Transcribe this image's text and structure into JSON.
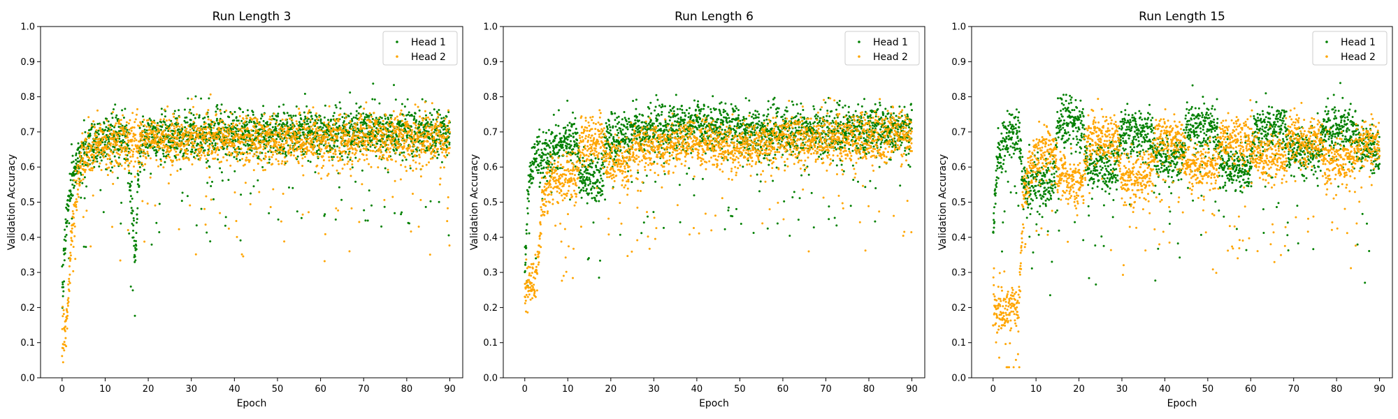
{
  "chart_data": [
    {
      "type": "scatter",
      "title": "Run Length 3",
      "xlabel": "Epoch",
      "ylabel": "Validation Accuracy",
      "xlim": [
        -5,
        93
      ],
      "ylim": [
        0,
        1.0
      ],
      "xticks": [
        "0",
        "10",
        "20",
        "30",
        "40",
        "50",
        "60",
        "70",
        "80",
        "90"
      ],
      "yticks": [
        "0.0",
        "0.1",
        "0.2",
        "0.3",
        "0.4",
        "0.5",
        "0.6",
        "0.7",
        "0.8",
        "0.9",
        "1.0"
      ],
      "grid": false,
      "legend": "top-right",
      "series": [
        {
          "name": "Head 1",
          "color": "#008000",
          "profile": {
            "x": [
              0,
              1,
              2,
              3,
              4,
              5,
              6,
              8,
              10,
              15,
              17,
              18,
              20,
              25,
              30,
              40,
              50,
              60,
              70,
              80,
              90
            ],
            "y": [
              0.22,
              0.45,
              0.55,
              0.6,
              0.63,
              0.65,
              0.66,
              0.67,
              0.68,
              0.68,
              0.35,
              0.65,
              0.68,
              0.69,
              0.69,
              0.69,
              0.7,
              0.7,
              0.7,
              0.7,
              0.7
            ]
          }
        },
        {
          "name": "Head 2",
          "color": "#FFA500",
          "profile": {
            "x": [
              0,
              1,
              2,
              3,
              4,
              5,
              6,
              8,
              10,
              15,
              20,
              25,
              30,
              40,
              50,
              60,
              70,
              80,
              90
            ],
            "y": [
              0.1,
              0.15,
              0.35,
              0.5,
              0.58,
              0.62,
              0.64,
              0.66,
              0.67,
              0.67,
              0.68,
              0.68,
              0.68,
              0.68,
              0.68,
              0.68,
              0.68,
              0.68,
              0.68
            ]
          }
        }
      ]
    },
    {
      "type": "scatter",
      "title": "Run Length 6",
      "xlabel": "Epoch",
      "ylabel": "Validation Accuracy",
      "xlim": [
        -5,
        93
      ],
      "ylim": [
        0,
        1.0
      ],
      "xticks": [
        "0",
        "10",
        "20",
        "30",
        "40",
        "50",
        "60",
        "70",
        "80",
        "90"
      ],
      "yticks": [
        "0.0",
        "0.1",
        "0.2",
        "0.3",
        "0.4",
        "0.5",
        "0.6",
        "0.7",
        "0.8",
        "0.9",
        "1.0"
      ],
      "grid": false,
      "legend": "top-right",
      "series": [
        {
          "name": "Head 1",
          "color": "#008000",
          "profile": {
            "x": [
              0,
              1,
              2,
              3,
              6,
              7,
              12,
              13,
              18,
              19,
              24,
              25,
              30,
              40,
              50,
              60,
              70,
              80,
              90
            ],
            "y": [
              0.3,
              0.55,
              0.6,
              0.63,
              0.63,
              0.67,
              0.67,
              0.57,
              0.57,
              0.68,
              0.68,
              0.7,
              0.7,
              0.72,
              0.71,
              0.7,
              0.7,
              0.71,
              0.7
            ]
          }
        },
        {
          "name": "Head 2",
          "color": "#FFA500",
          "profile": {
            "x": [
              0,
              3,
              4,
              6,
              7,
              12,
              13,
              18,
              19,
              24,
              25,
              30,
              40,
              50,
              60,
              70,
              80,
              90
            ],
            "y": [
              0.25,
              0.3,
              0.5,
              0.56,
              0.56,
              0.57,
              0.68,
              0.67,
              0.62,
              0.6,
              0.65,
              0.66,
              0.67,
              0.66,
              0.68,
              0.68,
              0.68,
              0.69
            ]
          }
        }
      ]
    },
    {
      "type": "scatter",
      "title": "Run Length 15",
      "xlabel": "Epoch",
      "ylabel": "Validation Accuracy",
      "xlim": [
        -5,
        93
      ],
      "ylim": [
        0,
        1.0
      ],
      "xticks": [
        "0",
        "10",
        "20",
        "30",
        "40",
        "50",
        "60",
        "70",
        "80",
        "90"
      ],
      "yticks": [
        "0.0",
        "0.1",
        "0.2",
        "0.3",
        "0.4",
        "0.5",
        "0.6",
        "0.7",
        "0.8",
        "0.9",
        "1.0"
      ],
      "grid": false,
      "legend": "top-right",
      "series": [
        {
          "name": "Head 1",
          "color": "#008000",
          "profile": {
            "x": [
              0,
              1,
              3,
              6,
              7,
              14,
              15,
              21,
              22,
              29,
              30,
              37,
              38,
              44,
              45,
              52,
              53,
              60,
              61,
              68,
              69,
              76,
              77,
              84,
              85,
              90
            ],
            "y": [
              0.4,
              0.62,
              0.68,
              0.7,
              0.55,
              0.55,
              0.73,
              0.72,
              0.6,
              0.6,
              0.71,
              0.7,
              0.62,
              0.62,
              0.72,
              0.71,
              0.6,
              0.6,
              0.72,
              0.71,
              0.64,
              0.64,
              0.71,
              0.7,
              0.65,
              0.65
            ]
          }
        },
        {
          "name": "Head 2",
          "color": "#FFA500",
          "profile": {
            "x": [
              0,
              6,
              7,
              9,
              14,
              15,
              21,
              22,
              29,
              30,
              37,
              38,
              44,
              45,
              52,
              53,
              60,
              61,
              68,
              69,
              76,
              77,
              84,
              85,
              90
            ],
            "y": [
              0.2,
              0.2,
              0.5,
              0.62,
              0.66,
              0.58,
              0.55,
              0.68,
              0.68,
              0.57,
              0.57,
              0.68,
              0.67,
              0.6,
              0.6,
              0.68,
              0.67,
              0.63,
              0.62,
              0.68,
              0.68,
              0.62,
              0.62,
              0.67,
              0.67
            ]
          }
        }
      ]
    }
  ]
}
